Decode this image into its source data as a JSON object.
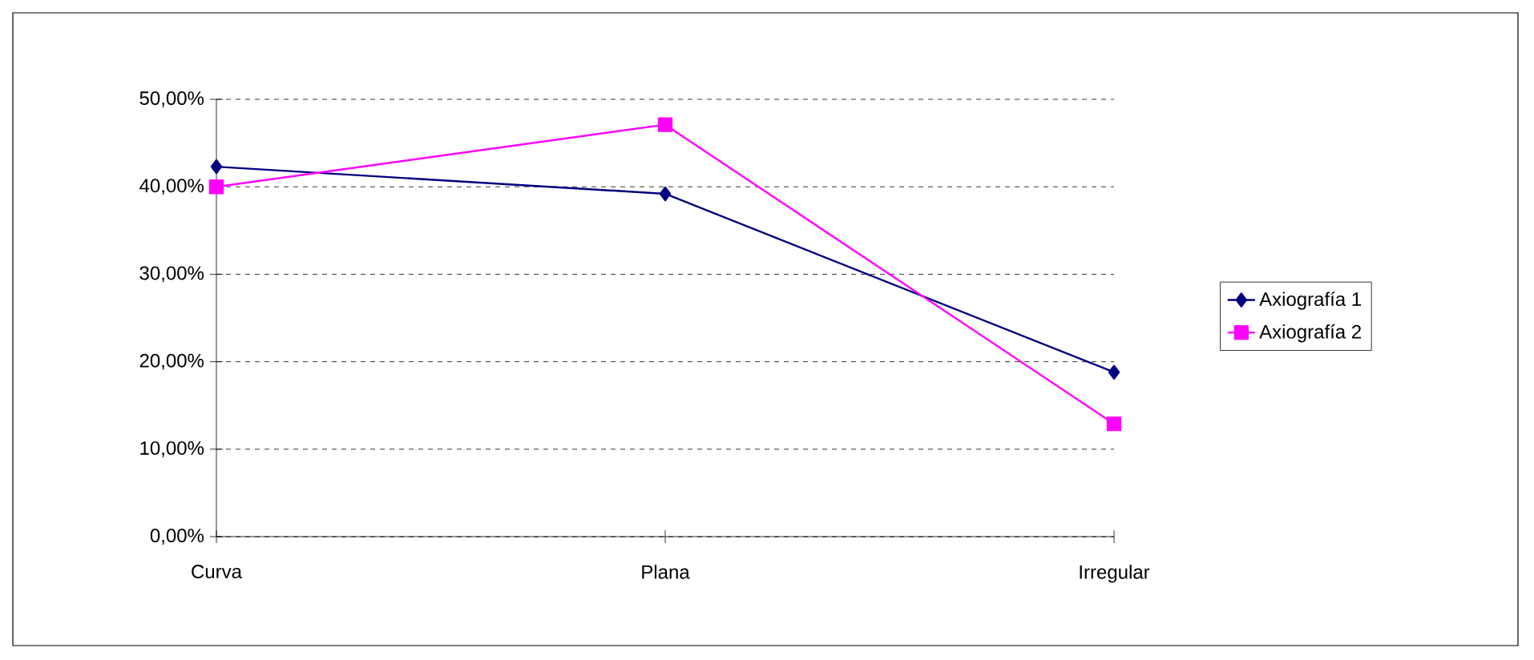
{
  "chart_data": {
    "type": "line",
    "categories": [
      "Curva",
      "Plana",
      "Irregular"
    ],
    "series": [
      {
        "name": "Axiografía 1",
        "color": "#000080",
        "marker": "diamond",
        "values": [
          42.3,
          39.2,
          18.8
        ]
      },
      {
        "name": "Axiografía 2",
        "color": "#ff00ff",
        "marker": "square",
        "values": [
          40.0,
          47.1,
          12.9
        ]
      }
    ],
    "ylim": [
      0,
      50
    ],
    "yticks": [
      {
        "value": 0,
        "label": "0,00%"
      },
      {
        "value": 10,
        "label": "10,00%"
      },
      {
        "value": 20,
        "label": "20,00%"
      },
      {
        "value": 30,
        "label": "30,00%"
      },
      {
        "value": 40,
        "label": "40,00%"
      },
      {
        "value": 50,
        "label": "50,00%"
      }
    ],
    "grid": "y",
    "legend": "right",
    "line_style": "solid"
  }
}
